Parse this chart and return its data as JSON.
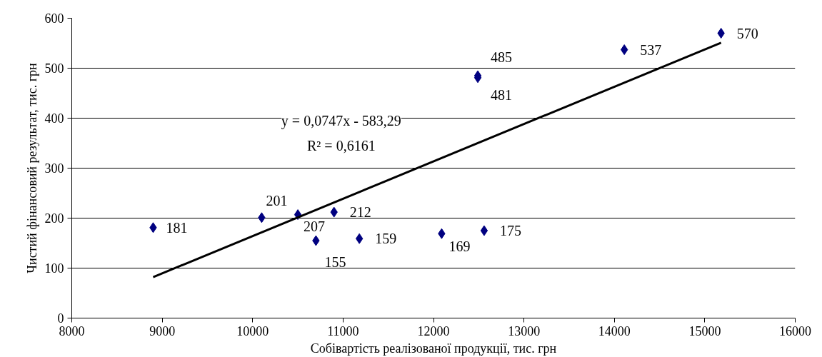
{
  "chart_data": {
    "type": "scatter",
    "xlabel": "Собівартість реалізованої продукції, тис. грн",
    "ylabel": "Чистий фінансовий результат, тис. грн",
    "xlim": [
      8000,
      16000
    ],
    "xticks": [
      8000,
      9000,
      10000,
      11000,
      12000,
      13000,
      14000,
      15000,
      16000
    ],
    "ylim": [
      0,
      600
    ],
    "yticks": [
      0,
      100,
      200,
      300,
      400,
      500,
      600
    ],
    "grid": "y",
    "series": [
      {
        "color": "#000080",
        "marker": "diamond",
        "x": [
          8900,
          10100,
          10500,
          10900,
          10700,
          11180,
          12090,
          12560,
          12490,
          12490,
          14110,
          15180
        ],
        "values": [
          181,
          201,
          207,
          212,
          155,
          159,
          169,
          175,
          481,
          485,
          537,
          570
        ],
        "value_labels": [
          "181",
          "201",
          "207",
          "212",
          "155",
          "159",
          "169",
          "175",
          "481",
          "485",
          "537",
          "570"
        ]
      },
      {
        "type": "line",
        "color": "#000000",
        "marker": "none",
        "x": [
          8900,
          15180
        ],
        "values": [
          82,
          551
        ]
      }
    ],
    "annotations": [
      "y = 0,0747x - 583,29",
      "R² = 0,6161"
    ]
  }
}
